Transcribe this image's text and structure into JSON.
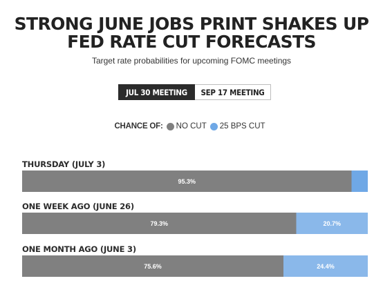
{
  "header": {
    "title_line1": "STRONG JUNE JOBS PRINT SHAKES UP",
    "title_line2": "FED RATE CUT FORECASTS",
    "subtitle": "Target rate probabilities for upcoming FOMC meetings"
  },
  "tabs": [
    {
      "label": "JUL 30 MEETING",
      "active": true
    },
    {
      "label": "SEP 17 MEETING",
      "active": false
    }
  ],
  "legend": {
    "lead": "CHANCE OF:",
    "items": [
      {
        "label": "NO CUT",
        "color": "#808080"
      },
      {
        "label": "25 BPS CUT",
        "color": "#6fa8e6"
      }
    ]
  },
  "chart_data": {
    "type": "bar",
    "orientation": "horizontal-stacked",
    "categories": [
      "THURSDAY (JULY 3)",
      "ONE WEEK AGO (JUNE 26)",
      "ONE MONTH AGO (JUNE 3)"
    ],
    "series": [
      {
        "name": "NO CUT",
        "values": [
          95.3,
          79.3,
          75.6
        ],
        "labels": [
          "95.3%",
          "79.3%",
          "75.6%"
        ],
        "color": "#808080"
      },
      {
        "name": "25 BPS CUT",
        "values": [
          4.7,
          20.7,
          24.4
        ],
        "labels": [
          "",
          "20.7%",
          "24.4%"
        ],
        "colors": [
          "#6fa8e6",
          "#8ab8ea",
          "#8ab8ea"
        ]
      }
    ],
    "xlim": [
      0,
      100
    ]
  }
}
